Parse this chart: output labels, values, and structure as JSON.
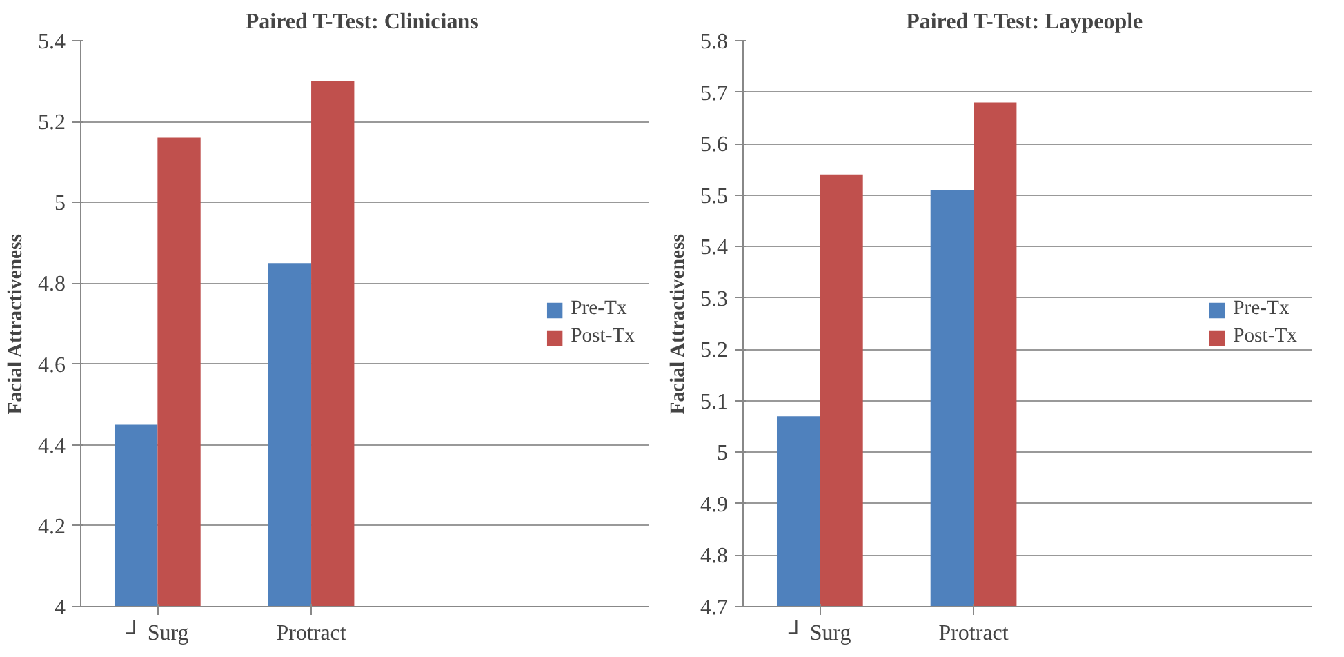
{
  "chart_data": [
    {
      "type": "bar",
      "title": "Paired T-Test:  Clinicians",
      "ylabel": "Facial Attractiveness",
      "categories": [
        "┘ Surg",
        "Protract"
      ],
      "series": [
        {
          "name": "Pre-Tx",
          "color": "#4f81bd",
          "values": [
            4.45,
            4.85
          ]
        },
        {
          "name": "Post-Tx",
          "color": "#c0504d",
          "values": [
            5.16,
            5.3
          ]
        }
      ],
      "ylim": [
        4,
        5.4
      ],
      "yticks": [
        4,
        4.2,
        4.4,
        4.6,
        4.8,
        5,
        5.2,
        5.4
      ],
      "grid": "y",
      "legend": "right"
    },
    {
      "type": "bar",
      "title": "Paired T-Test:  Laypeople",
      "ylabel": "Facial Attractiveness",
      "categories": [
        "┘ Surg",
        "Protract"
      ],
      "series": [
        {
          "name": "Pre-Tx",
          "color": "#4f81bd",
          "values": [
            5.07,
            5.51
          ]
        },
        {
          "name": "Post-Tx",
          "color": "#c0504d",
          "values": [
            5.54,
            5.68
          ]
        }
      ],
      "ylim": [
        4.7,
        5.8
      ],
      "yticks": [
        4.7,
        4.8,
        4.9,
        5,
        5.1,
        5.2,
        5.3,
        5.4,
        5.5,
        5.6,
        5.7,
        5.8
      ],
      "grid": "y",
      "legend": "right"
    }
  ]
}
